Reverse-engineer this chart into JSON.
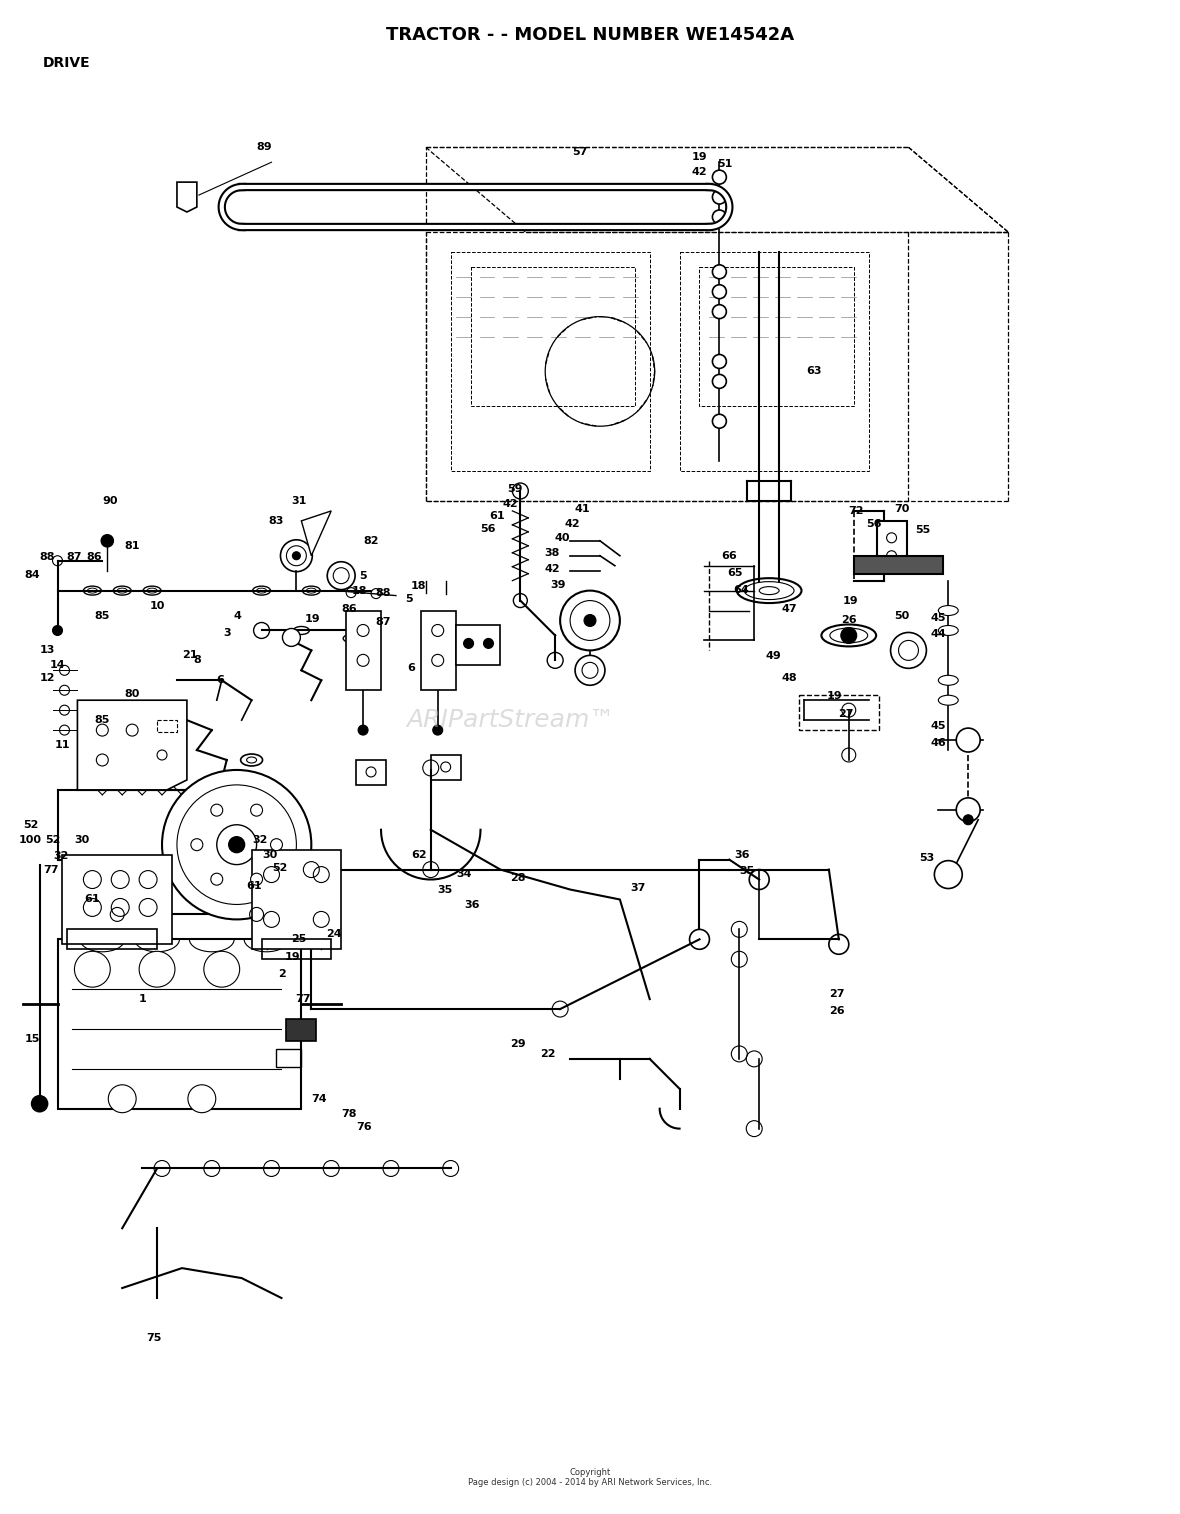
{
  "title": "TRACTOR - - MODEL NUMBER WE14542A",
  "subtitle": "DRIVE",
  "copyright": "Copyright\nPage design (c) 2004 - 2014 by ARI Network Services, Inc.",
  "watermark": "ARIPartStream™",
  "bg_color": "#ffffff",
  "title_fontsize": 13,
  "subtitle_fontsize": 10,
  "label_fontsize": 8,
  "fig_w": 11.8,
  "fig_h": 15.14,
  "dpi": 100
}
